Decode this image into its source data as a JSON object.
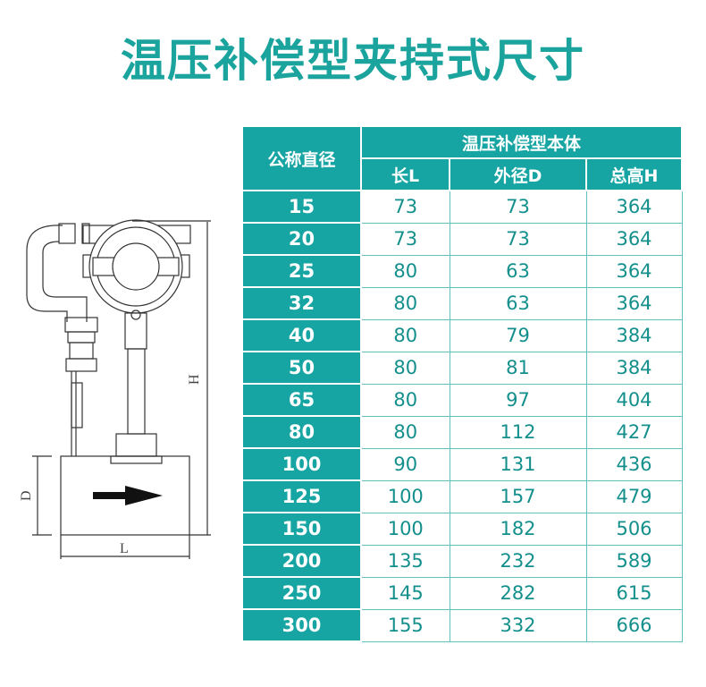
{
  "title": "温压补偿型夹持式尺寸",
  "drawing_labels": {
    "height": "H",
    "diameter": "D",
    "length": "L"
  },
  "table": {
    "header_nominal": "公称直径",
    "header_group": "温压补偿型本体",
    "columns": [
      "长L",
      "外径D",
      "总高H"
    ],
    "rows": [
      [
        "15",
        "73",
        "73",
        "364"
      ],
      [
        "20",
        "73",
        "73",
        "364"
      ],
      [
        "25",
        "80",
        "63",
        "364"
      ],
      [
        "32",
        "80",
        "63",
        "364"
      ],
      [
        "40",
        "80",
        "79",
        "384"
      ],
      [
        "50",
        "80",
        "81",
        "384"
      ],
      [
        "65",
        "80",
        "97",
        "404"
      ],
      [
        "80",
        "80",
        "112",
        "427"
      ],
      [
        "100",
        "90",
        "131",
        "436"
      ],
      [
        "125",
        "100",
        "157",
        "479"
      ],
      [
        "150",
        "100",
        "182",
        "506"
      ],
      [
        "200",
        "135",
        "232",
        "589"
      ],
      [
        "250",
        "145",
        "282",
        "615"
      ],
      [
        "300",
        "155",
        "332",
        "666"
      ]
    ]
  },
  "colors": {
    "accent": "#17a5a3",
    "title": "#1ba39d"
  }
}
